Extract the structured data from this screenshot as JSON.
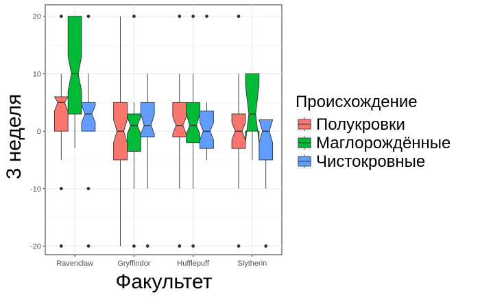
{
  "chart_data": {
    "type": "boxplot",
    "xlabel": "Факультет",
    "ylabel": "3 неделя",
    "ylim": [
      -21.5,
      22
    ],
    "yticks": [
      -20,
      -10,
      0,
      10,
      20
    ],
    "grid": true,
    "notched": true,
    "legend_position": "right",
    "legend": {
      "title": "Происхождение",
      "entries": [
        "Полукровки",
        "Маглорождённые",
        "Чистокровные"
      ]
    },
    "categories": [
      "Ravenclaw",
      "Gryffindor",
      "Hufflepuff",
      "Slytherin"
    ],
    "series": [
      {
        "name": "Полукровки",
        "color": "#F8766D",
        "boxes": [
          {
            "lower": -5,
            "q1": 0,
            "median": 5,
            "q3": 6,
            "upper": 10,
            "notch": [
              3.5,
              6
            ],
            "outliers": [
              -20,
              -10,
              20
            ]
          },
          {
            "lower": -20,
            "q1": -5,
            "median": 0,
            "q3": 5,
            "upper": 20,
            "notch": [
              -2,
              2
            ],
            "outliers": []
          },
          {
            "lower": -10,
            "q1": -1,
            "median": 1,
            "q3": 5,
            "upper": 10,
            "notch": [
              -0.5,
              2.5
            ],
            "outliers": [
              -20,
              20
            ]
          },
          {
            "lower": -10,
            "q1": -3,
            "median": 0,
            "q3": 3,
            "upper": 10,
            "notch": [
              -1.5,
              1.5
            ],
            "outliers": [
              -20,
              20
            ]
          }
        ]
      },
      {
        "name": "Маглорождённые",
        "color": "#00BA38",
        "boxes": [
          {
            "lower": -3,
            "q1": 3,
            "median": 10,
            "q3": 20,
            "upper": 20,
            "notch": [
              7,
              13
            ],
            "outliers": []
          },
          {
            "lower": -10,
            "q1": -3.5,
            "median": 1,
            "q3": 3,
            "upper": 5,
            "notch": [
              -0.5,
              2.5
            ],
            "outliers": [
              -20,
              20
            ]
          },
          {
            "lower": -10,
            "q1": -2,
            "median": 1,
            "q3": 5,
            "upper": 10,
            "notch": [
              -0.5,
              3
            ],
            "outliers": [
              -20,
              20
            ]
          },
          {
            "lower": -5,
            "q1": 0,
            "median": 3,
            "q3": 10,
            "upper": 10,
            "notch": [
              -2,
              8
            ],
            "outliers": []
          }
        ]
      },
      {
        "name": "Чистокровные",
        "color": "#619CFF",
        "boxes": [
          {
            "lower": 0,
            "q1": 0,
            "median": 3,
            "q3": 5,
            "upper": 10,
            "notch": [
              1.5,
              4.5
            ],
            "outliers": [
              -20,
              -10,
              20
            ]
          },
          {
            "lower": -10,
            "q1": -1,
            "median": 1,
            "q3": 5,
            "upper": 10,
            "notch": [
              -0.5,
              3
            ],
            "outliers": [
              -20
            ]
          },
          {
            "lower": -5,
            "q1": -3,
            "median": 0,
            "q3": 3.5,
            "upper": 5,
            "notch": [
              -1.5,
              1.5
            ],
            "outliers": [
              20
            ]
          },
          {
            "lower": -10,
            "q1": -5,
            "median": 0,
            "q3": 2,
            "upper": 2,
            "notch": [
              -2,
              2
            ],
            "outliers": [
              -20
            ]
          }
        ]
      }
    ]
  }
}
